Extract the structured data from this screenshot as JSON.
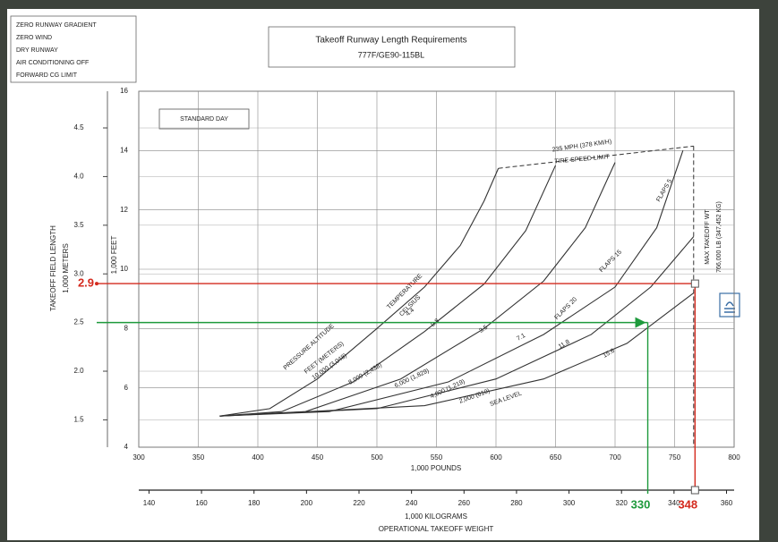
{
  "chart_data": {
    "type": "line",
    "title": "Takeoff Runway Length Requirements",
    "subtitle": "777F/GE90-115BL",
    "notes": [
      "ZERO RUNWAY GRADIENT",
      "ZERO WIND",
      "DRY RUNWAY",
      "AIR CONDITIONING OFF",
      "FORWARD CG LIMIT"
    ],
    "x_label": "1,000 POUNDS",
    "y_title": "TAKEOFF FIELD LENGTH",
    "y_label": "1,000 FEET",
    "y2_label": "1,000 METERS",
    "x2_label": "1,000 KILOGRAMS",
    "x2_title": "OPERATIONAL TAKEOFF WEIGHT",
    "xlim": [
      300,
      800
    ],
    "xticks": [
      300,
      350,
      400,
      450,
      500,
      550,
      600,
      650,
      700,
      750,
      800
    ],
    "ylim": [
      4,
      16
    ],
    "yticks": [
      4,
      6,
      8,
      10,
      12,
      14,
      16
    ],
    "y2lim": [
      1.219,
      4.877
    ],
    "y2ticks": [
      1.5,
      {
        "value": 2,
        "label": "2.0"
      },
      2.5,
      {
        "value": 3,
        "label": "3.0"
      },
      3.5,
      {
        "value": 4,
        "label": "4.0"
      },
      4.5
    ],
    "x2lim": [
      136.1,
      362.9
    ],
    "x2ticks": [
      140,
      160,
      180,
      200,
      220,
      240,
      260,
      280,
      300,
      320,
      340,
      360
    ],
    "grid": true,
    "series": [
      {
        "name": "10,000 (3,048)",
        "temperature": 4.4,
        "color": "#333333",
        "x": [
          368,
          410,
          450,
          500,
          540,
          570,
          590,
          602
        ],
        "values": [
          5.05,
          5.3,
          6.3,
          8.0,
          9.4,
          10.8,
          12.3,
          13.4
        ]
      },
      {
        "name": "8,000 (2,438)",
        "temperature": 9.8,
        "color": "#333333",
        "x": [
          368,
          420,
          480,
          540,
          590,
          625,
          650
        ],
        "values": [
          5.05,
          5.2,
          6.2,
          7.9,
          9.5,
          11.3,
          13.5
        ]
      },
      {
        "name": "6,000 (1,829)",
        "temperature": 3.5,
        "color": "#333333",
        "x": [
          368,
          440,
          520,
          590,
          640,
          675,
          700
        ],
        "values": [
          5.05,
          5.2,
          6.3,
          8.0,
          9.6,
          11.4,
          13.6
        ]
      },
      {
        "name": "4,000 (1,219)",
        "temperature": 7.1,
        "color": "#333333",
        "x": [
          368,
          460,
          560,
          640,
          700,
          735,
          757
        ],
        "values": [
          5.05,
          5.2,
          6.2,
          7.8,
          9.4,
          11.4,
          14.0
        ]
      },
      {
        "name": "2,000 (610)",
        "temperature": 11.8,
        "color": "#333333",
        "x": [
          368,
          500,
          600,
          680,
          730,
          766
        ],
        "values": [
          5.05,
          5.3,
          6.3,
          7.8,
          9.4,
          11.1
        ]
      },
      {
        "name": "SEA LEVEL",
        "temperature": 15.6,
        "color": "#333333",
        "x": [
          368,
          540,
          640,
          710,
          766
        ],
        "values": [
          5.05,
          5.4,
          6.3,
          7.5,
          9.2
        ]
      }
    ],
    "tire_speed_limit": {
      "x": [
        602,
        766
      ],
      "values": [
        13.4,
        14.15
      ]
    },
    "annotations": [
      "STANDARD DAY",
      "235 MPH (378 KM/H)",
      "TIRE SPEED LIMIT",
      "TEMPERATURE",
      "CELSIUS",
      "PRESSURE ALTITUDE",
      "FEET (METERS)",
      "FLAPS 5",
      "FLAPS 15",
      "FLAPS 20",
      "MAX TAKEOFF WT",
      "766,000 LB (347,452 KG)"
    ],
    "reference_lines": [
      {
        "color": "#d42a1e",
        "y2": 2.9,
        "x2": 348
      },
      {
        "color": "#1e9a3c",
        "y2": 2.5,
        "x2": 330
      }
    ]
  }
}
